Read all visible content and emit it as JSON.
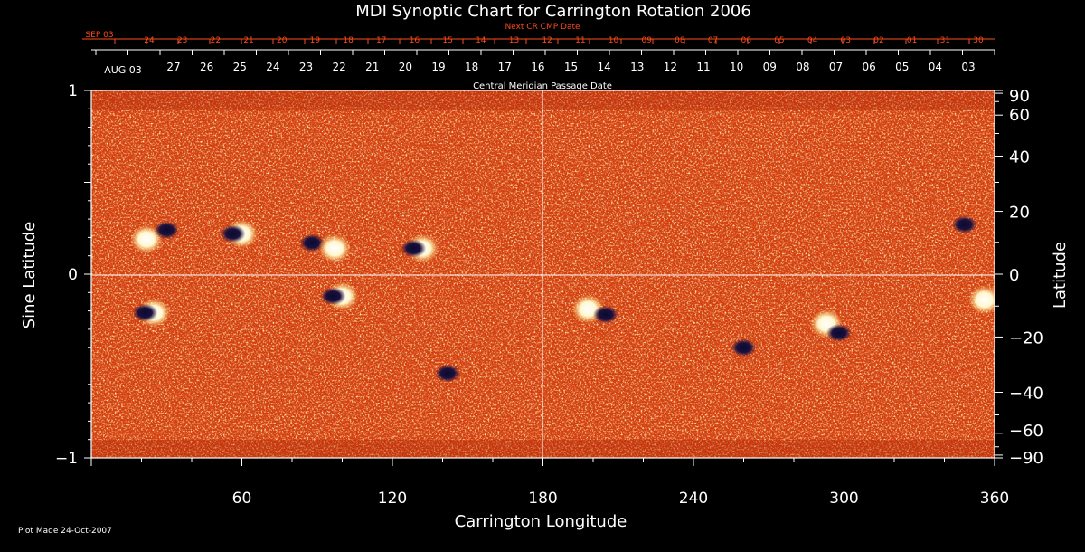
{
  "chart_data": {
    "type": "heatmap",
    "title": "MDI Synoptic Chart for Carrington Rotation 2006",
    "next_cr_label": "Next CR CMP Date",
    "next_cr_dates": [
      "SEP 03",
      "24",
      "23",
      "22",
      "21",
      "20",
      "19",
      "18",
      "17",
      "16",
      "15",
      "14",
      "13",
      "12",
      "11",
      "10",
      "09",
      "08",
      "07",
      "06",
      "05",
      "04",
      "03",
      "02",
      "01",
      "31",
      "30"
    ],
    "cmp_dates_first": "AUG 03",
    "cmp_dates": [
      "27",
      "26",
      "25",
      "24",
      "23",
      "22",
      "21",
      "20",
      "19",
      "18",
      "17",
      "16",
      "15",
      "14",
      "13",
      "12",
      "11",
      "10",
      "09",
      "08",
      "07",
      "06",
      "05",
      "04",
      "03"
    ],
    "cmp_label": "Central Meridian Passage Date",
    "xlabel": "Carrington Longitude",
    "x_ticks": [
      "60",
      "120",
      "180",
      "240",
      "300",
      "360"
    ],
    "xlim": [
      0,
      360
    ],
    "ylabel_left": "Sine Latitude",
    "y_ticks_left": [
      "1",
      "0",
      "−1"
    ],
    "ylim": [
      -1,
      1
    ],
    "ylabel_right": "Latitude",
    "y_ticks_right": [
      "90",
      "60",
      "40",
      "20",
      "0",
      "−20",
      "−40",
      "−60",
      "−90"
    ],
    "footer": "Plot Made 24-Oct-2007",
    "regions": [
      {
        "lon": 22,
        "sinlat": 0.19,
        "polarity": "positive"
      },
      {
        "lon": 30,
        "sinlat": 0.24,
        "polarity": "negative"
      },
      {
        "lon": 60,
        "sinlat": 0.22,
        "polarity": "mixed"
      },
      {
        "lon": 88,
        "sinlat": 0.17,
        "polarity": "negative"
      },
      {
        "lon": 97,
        "sinlat": 0.14,
        "polarity": "positive"
      },
      {
        "lon": 132,
        "sinlat": 0.14,
        "polarity": "mixed"
      },
      {
        "lon": 25,
        "sinlat": -0.21,
        "polarity": "mixed"
      },
      {
        "lon": 100,
        "sinlat": -0.12,
        "polarity": "mixed"
      },
      {
        "lon": 142,
        "sinlat": -0.54,
        "polarity": "negative"
      },
      {
        "lon": 198,
        "sinlat": -0.19,
        "polarity": "positive"
      },
      {
        "lon": 205,
        "sinlat": -0.22,
        "polarity": "negative"
      },
      {
        "lon": 260,
        "sinlat": -0.4,
        "polarity": "negative"
      },
      {
        "lon": 293,
        "sinlat": -0.27,
        "polarity": "positive"
      },
      {
        "lon": 298,
        "sinlat": -0.32,
        "polarity": "negative"
      },
      {
        "lon": 348,
        "sinlat": 0.27,
        "polarity": "negative"
      },
      {
        "lon": 356,
        "sinlat": -0.14,
        "polarity": "positive"
      }
    ]
  }
}
